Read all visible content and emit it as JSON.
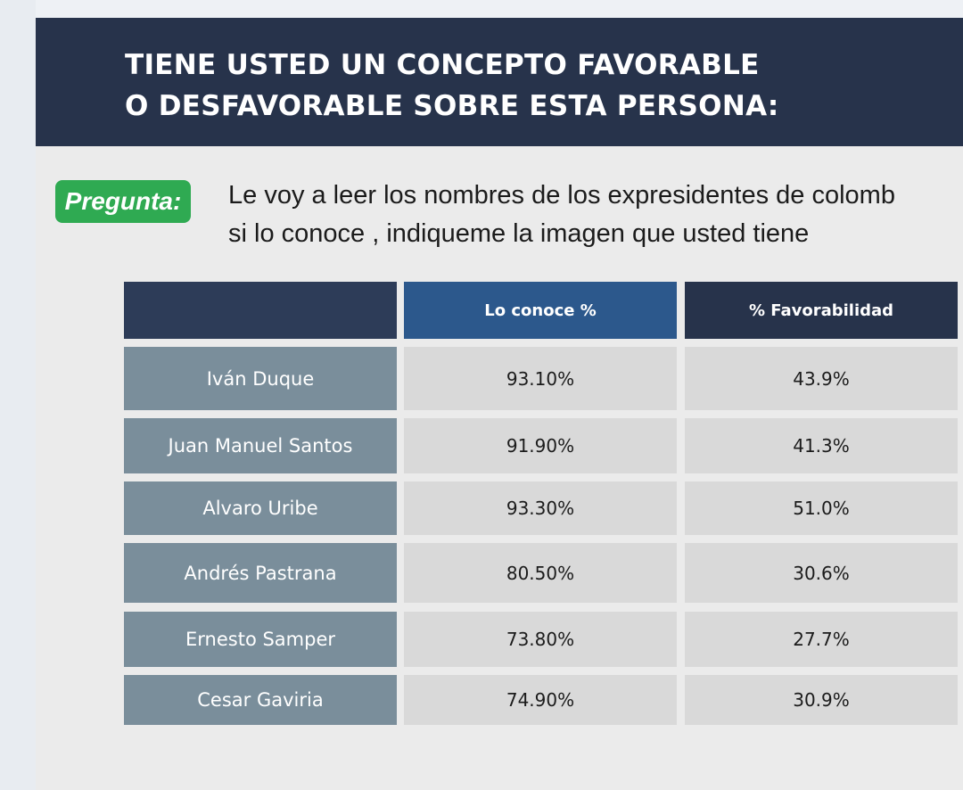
{
  "banner": {
    "title": "TIENE USTED UN CONCEPTO FAVORABLE\nO DESFAVORABLE SOBRE ESTA PERSONA:"
  },
  "question": {
    "badge": "Pregunta:",
    "text": "Le voy a leer los nombres de los expresidentes de colomb\nsi lo conoce , indiqueme la imagen que usted tiene"
  },
  "colors": {
    "banner": "#27334b",
    "badge": "#2faa52",
    "header_known": "#2c588c",
    "name_cell": "#7a8e9b",
    "value_cell": "#d9d9d9"
  },
  "chart_data": {
    "type": "table",
    "columns": [
      "",
      "Lo conoce %",
      "% Favorabilidad"
    ],
    "rows": [
      {
        "name": "Iván Duque",
        "conoce": "93.10%",
        "favorabilidad": "43.9%"
      },
      {
        "name": "Juan Manuel Santos",
        "conoce": "91.90%",
        "favorabilidad": "41.3%"
      },
      {
        "name": "Alvaro Uribe",
        "conoce": "93.30%",
        "favorabilidad": "51.0%"
      },
      {
        "name": "Andrés Pastrana",
        "conoce": "80.50%",
        "favorabilidad": "30.6%"
      },
      {
        "name": "Ernesto Samper",
        "conoce": "73.80%",
        "favorabilidad": "27.7%"
      },
      {
        "name": "Cesar Gaviria",
        "conoce": "74.90%",
        "favorabilidad": "30.9%"
      }
    ]
  }
}
